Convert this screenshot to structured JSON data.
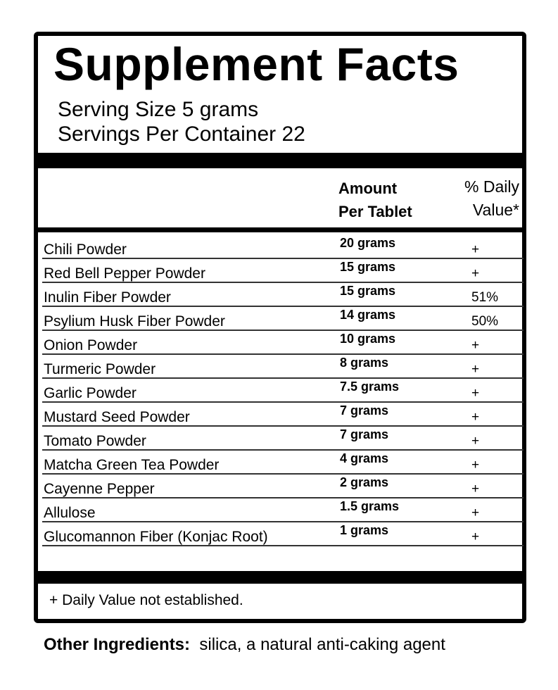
{
  "title": "Supplement Facts",
  "serving_size": "Serving Size 5 grams",
  "servings_per_container": "Servings Per Container 22",
  "header": {
    "amount_line1": "Amount",
    "amount_line2": "Per Tablet",
    "dv_line1": "% Daily",
    "dv_line2": "Value*"
  },
  "rows": [
    {
      "name": "Chili Powder",
      "amount": "20 grams",
      "dv": "+"
    },
    {
      "name": "Red Bell Pepper Powder",
      "amount": "15 grams",
      "dv": "+"
    },
    {
      "name": "Inulin Fiber Powder",
      "amount": "15 grams",
      "dv": "51%"
    },
    {
      "name": "Psylium Husk Fiber Powder",
      "amount": "14 grams",
      "dv": "50%"
    },
    {
      "name": "Onion Powder",
      "amount": "10 grams",
      "dv": "+"
    },
    {
      "name": "Turmeric Powder",
      "amount": "8 grams",
      "dv": "+"
    },
    {
      "name": "Garlic Powder",
      "amount": "7.5 grams",
      "dv": "+"
    },
    {
      "name": "Mustard Seed Powder",
      "amount": "7 grams",
      "dv": "+"
    },
    {
      "name": "Tomato Powder",
      "amount": "7 grams",
      "dv": "+"
    },
    {
      "name": "Matcha Green Tea Powder",
      "amount": "4 grams",
      "dv": "+"
    },
    {
      "name": "Cayenne Pepper",
      "amount": "2 grams",
      "dv": "+"
    },
    {
      "name": "Allulose",
      "amount": "1.5 grams",
      "dv": "+"
    },
    {
      "name": "Glucomannon Fiber (Konjac Root)",
      "amount": "1 grams",
      "dv": "+"
    }
  ],
  "footnote": "+ Daily Value not established.",
  "other_ingredients": {
    "label": "Other Ingredients:",
    "text": "silica, a natural anti-caking agent"
  }
}
